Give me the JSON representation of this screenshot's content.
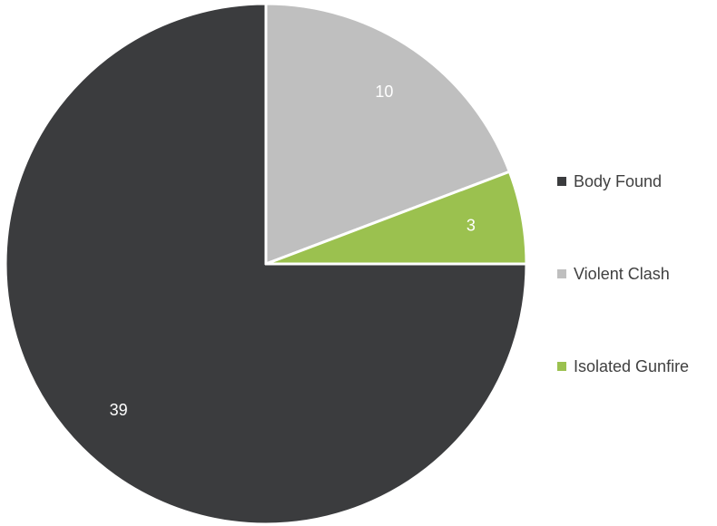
{
  "chart_data": {
    "type": "pie",
    "title": "",
    "categories": [
      "Body Found",
      "Violent Clash",
      "Isolated Gunfire"
    ],
    "values": [
      39,
      10,
      3
    ],
    "data_labels": [
      "39",
      "10",
      "3"
    ],
    "colors": [
      "#3b3c3e",
      "#bfbfbf",
      "#9bc14f"
    ],
    "label_colors": [
      "#ffffff",
      "#ffffff",
      "#ffffff"
    ],
    "start": "3 o'clock, clockwise",
    "legend": {
      "position": "right",
      "entries": [
        "Body Found",
        "Violent Clash",
        "Isolated Gunfire"
      ]
    }
  }
}
